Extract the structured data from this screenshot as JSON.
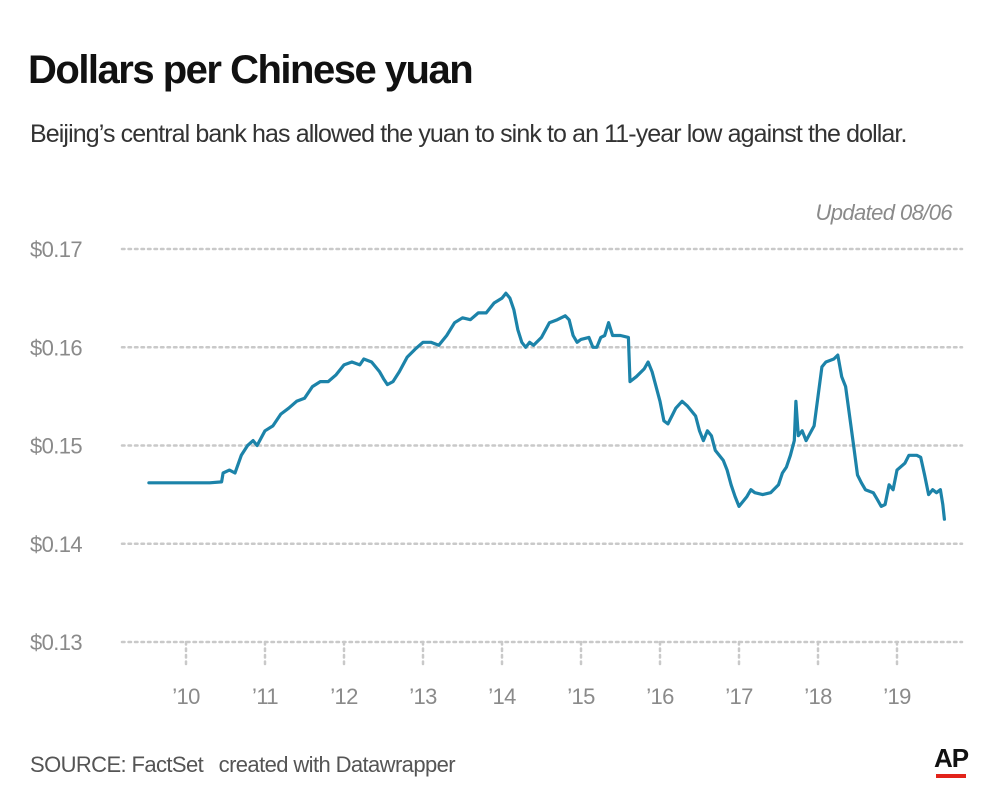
{
  "header": {
    "title": "Dollars per Chinese yuan",
    "subtitle": "Beijing’s central bank has allowed the yuan to sink to an 11-year low against the dollar."
  },
  "note": "Updated 08/06",
  "footer": {
    "source": "SOURCE: FactSet",
    "credit": "created with Datawrapper",
    "logo_text": "AP"
  },
  "colors": {
    "line": "#1c83a9",
    "grid": "#c9c9c9",
    "axis_text": "#8a8a8a",
    "logo_accent": "#e2231a"
  },
  "chart_data": {
    "type": "line",
    "title": "Dollars per Chinese yuan",
    "xlabel": "",
    "ylabel": "",
    "ylim": [
      0.13,
      0.17
    ],
    "xlim": [
      2009.55,
      2019.7
    ],
    "y_ticks": [
      0.13,
      0.14,
      0.15,
      0.16,
      0.17
    ],
    "y_tick_labels": [
      "$0.13",
      "$0.14",
      "$0.15",
      "$0.16",
      "$0.17"
    ],
    "x_ticks": [
      2010,
      2011,
      2012,
      2013,
      2014,
      2015,
      2016,
      2017,
      2018,
      2019
    ],
    "x_tick_labels": [
      "’10",
      "’11",
      "’12",
      "’13",
      "’14",
      "’15",
      "’16",
      "’17",
      "’18",
      "’19"
    ],
    "grid": true,
    "series": [
      {
        "name": "Dollars per yuan",
        "points": [
          [
            2009.53,
            0.1462
          ],
          [
            2009.8,
            0.1462
          ],
          [
            2010.1,
            0.1462
          ],
          [
            2010.3,
            0.1462
          ],
          [
            2010.45,
            0.1463
          ],
          [
            2010.47,
            0.1472
          ],
          [
            2010.55,
            0.1475
          ],
          [
            2010.62,
            0.1472
          ],
          [
            2010.7,
            0.149
          ],
          [
            2010.78,
            0.15
          ],
          [
            2010.85,
            0.1505
          ],
          [
            2010.9,
            0.15
          ],
          [
            2011.0,
            0.1515
          ],
          [
            2011.1,
            0.152
          ],
          [
            2011.2,
            0.1532
          ],
          [
            2011.3,
            0.1538
          ],
          [
            2011.4,
            0.1545
          ],
          [
            2011.5,
            0.1548
          ],
          [
            2011.6,
            0.156
          ],
          [
            2011.7,
            0.1565
          ],
          [
            2011.8,
            0.1565
          ],
          [
            2011.9,
            0.1572
          ],
          [
            2012.0,
            0.1582
          ],
          [
            2012.1,
            0.1585
          ],
          [
            2012.2,
            0.1582
          ],
          [
            2012.25,
            0.1588
          ],
          [
            2012.35,
            0.1585
          ],
          [
            2012.45,
            0.1575
          ],
          [
            2012.5,
            0.1568
          ],
          [
            2012.55,
            0.1562
          ],
          [
            2012.62,
            0.1565
          ],
          [
            2012.7,
            0.1575
          ],
          [
            2012.8,
            0.159
          ],
          [
            2012.9,
            0.1598
          ],
          [
            2013.0,
            0.1605
          ],
          [
            2013.1,
            0.1605
          ],
          [
            2013.2,
            0.1602
          ],
          [
            2013.3,
            0.1612
          ],
          [
            2013.4,
            0.1625
          ],
          [
            2013.5,
            0.163
          ],
          [
            2013.6,
            0.1628
          ],
          [
            2013.7,
            0.1635
          ],
          [
            2013.8,
            0.1635
          ],
          [
            2013.9,
            0.1645
          ],
          [
            2014.0,
            0.165
          ],
          [
            2014.05,
            0.1655
          ],
          [
            2014.1,
            0.165
          ],
          [
            2014.15,
            0.1638
          ],
          [
            2014.2,
            0.1618
          ],
          [
            2014.25,
            0.1605
          ],
          [
            2014.3,
            0.16
          ],
          [
            2014.35,
            0.1605
          ],
          [
            2014.4,
            0.1602
          ],
          [
            2014.5,
            0.161
          ],
          [
            2014.6,
            0.1625
          ],
          [
            2014.7,
            0.1628
          ],
          [
            2014.8,
            0.1632
          ],
          [
            2014.85,
            0.1628
          ],
          [
            2014.9,
            0.1612
          ],
          [
            2014.95,
            0.1605
          ],
          [
            2015.0,
            0.1608
          ],
          [
            2015.1,
            0.161
          ],
          [
            2015.15,
            0.16
          ],
          [
            2015.2,
            0.16
          ],
          [
            2015.25,
            0.161
          ],
          [
            2015.3,
            0.1612
          ],
          [
            2015.35,
            0.1625
          ],
          [
            2015.4,
            0.1612
          ],
          [
            2015.5,
            0.1612
          ],
          [
            2015.6,
            0.161
          ],
          [
            2015.62,
            0.1565
          ],
          [
            2015.7,
            0.157
          ],
          [
            2015.8,
            0.1578
          ],
          [
            2015.85,
            0.1585
          ],
          [
            2015.9,
            0.1575
          ],
          [
            2016.0,
            0.1545
          ],
          [
            2016.05,
            0.1525
          ],
          [
            2016.1,
            0.1522
          ],
          [
            2016.15,
            0.153
          ],
          [
            2016.2,
            0.1538
          ],
          [
            2016.28,
            0.1545
          ],
          [
            2016.35,
            0.154
          ],
          [
            2016.45,
            0.153
          ],
          [
            2016.5,
            0.1515
          ],
          [
            2016.55,
            0.1505
          ],
          [
            2016.6,
            0.1515
          ],
          [
            2016.65,
            0.151
          ],
          [
            2016.7,
            0.1495
          ],
          [
            2016.8,
            0.1485
          ],
          [
            2016.85,
            0.1475
          ],
          [
            2016.9,
            0.146
          ],
          [
            2016.95,
            0.1448
          ],
          [
            2017.0,
            0.1438
          ],
          [
            2017.1,
            0.1448
          ],
          [
            2017.15,
            0.1455
          ],
          [
            2017.2,
            0.1452
          ],
          [
            2017.3,
            0.145
          ],
          [
            2017.4,
            0.1452
          ],
          [
            2017.5,
            0.146
          ],
          [
            2017.55,
            0.1472
          ],
          [
            2017.6,
            0.1478
          ],
          [
            2017.65,
            0.149
          ],
          [
            2017.7,
            0.1505
          ],
          [
            2017.72,
            0.1545
          ],
          [
            2017.75,
            0.151
          ],
          [
            2017.8,
            0.1515
          ],
          [
            2017.85,
            0.1505
          ],
          [
            2017.95,
            0.152
          ],
          [
            2018.0,
            0.155
          ],
          [
            2018.05,
            0.158
          ],
          [
            2018.1,
            0.1585
          ],
          [
            2018.2,
            0.1588
          ],
          [
            2018.25,
            0.1592
          ],
          [
            2018.3,
            0.157
          ],
          [
            2018.35,
            0.156
          ],
          [
            2018.4,
            0.153
          ],
          [
            2018.45,
            0.15
          ],
          [
            2018.5,
            0.147
          ],
          [
            2018.55,
            0.1462
          ],
          [
            2018.6,
            0.1455
          ],
          [
            2018.7,
            0.1452
          ],
          [
            2018.75,
            0.1445
          ],
          [
            2018.8,
            0.1438
          ],
          [
            2018.85,
            0.144
          ],
          [
            2018.9,
            0.146
          ],
          [
            2018.95,
            0.1455
          ],
          [
            2019.0,
            0.1475
          ],
          [
            2019.1,
            0.1482
          ],
          [
            2019.15,
            0.149
          ],
          [
            2019.25,
            0.149
          ],
          [
            2019.3,
            0.1488
          ],
          [
            2019.35,
            0.147
          ],
          [
            2019.4,
            0.145
          ],
          [
            2019.45,
            0.1455
          ],
          [
            2019.5,
            0.1452
          ],
          [
            2019.55,
            0.1455
          ],
          [
            2019.58,
            0.144
          ],
          [
            2019.6,
            0.1425
          ]
        ]
      }
    ]
  }
}
